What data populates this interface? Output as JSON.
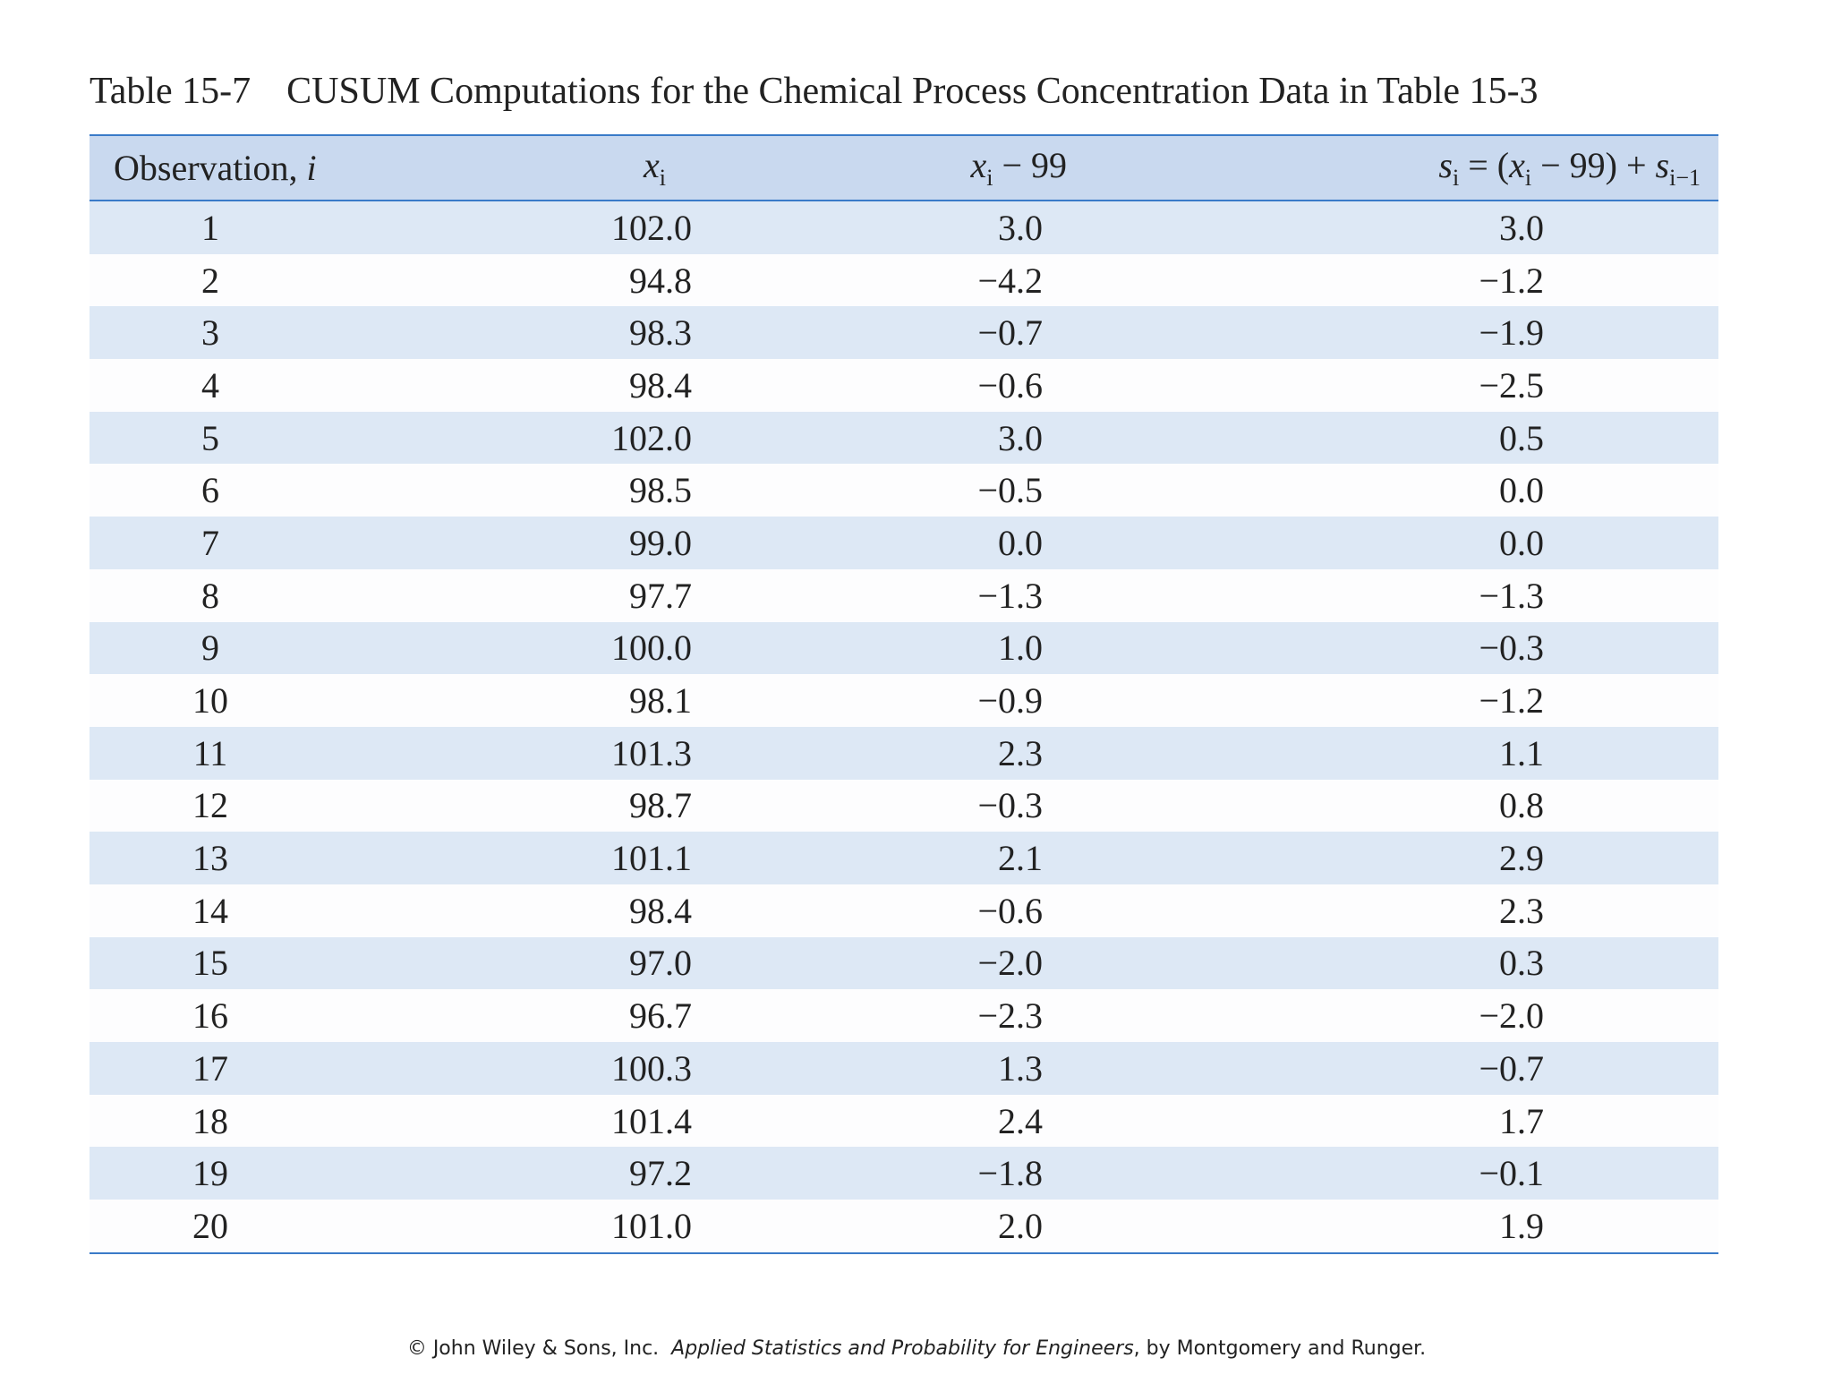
{
  "caption": {
    "label": "Table 15-7",
    "title": "CUSUM Computations for the Chemical Process Concentration Data in Table 15-3"
  },
  "table": {
    "header": [
      [
        "Observation, ",
        {
          "italic": "i"
        }
      ],
      [
        {
          "italic": "x"
        },
        {
          "sub": "i"
        }
      ],
      [
        {
          "italic": "x"
        },
        {
          "sub": "i"
        },
        " − 99"
      ],
      [
        {
          "italic": "s"
        },
        {
          "sub": "i"
        },
        " = (",
        {
          "italic": "x"
        },
        {
          "sub": "i"
        },
        " − 99) + ",
        {
          "italic": "s"
        },
        {
          "sub": "i−1"
        }
      ]
    ],
    "rows": [
      [
        "1",
        "102.0",
        "3.0",
        "3.0"
      ],
      [
        "2",
        "94.8",
        "−4.2",
        "−1.2"
      ],
      [
        "3",
        "98.3",
        "−0.7",
        "−1.9"
      ],
      [
        "4",
        "98.4",
        "−0.6",
        "−2.5"
      ],
      [
        "5",
        "102.0",
        "3.0",
        "0.5"
      ],
      [
        "6",
        "98.5",
        "−0.5",
        "0.0"
      ],
      [
        "7",
        "99.0",
        "0.0",
        "0.0"
      ],
      [
        "8",
        "97.7",
        "−1.3",
        "−1.3"
      ],
      [
        "9",
        "100.0",
        "1.0",
        "−0.3"
      ],
      [
        "10",
        "98.1",
        "−0.9",
        "−1.2"
      ],
      [
        "11",
        "101.3",
        "2.3",
        "1.1"
      ],
      [
        "12",
        "98.7",
        "−0.3",
        "0.8"
      ],
      [
        "13",
        "101.1",
        "2.1",
        "2.9"
      ],
      [
        "14",
        "98.4",
        "−0.6",
        "2.3"
      ],
      [
        "15",
        "97.0",
        "−2.0",
        "0.3"
      ],
      [
        "16",
        "96.7",
        "−2.3",
        "−2.0"
      ],
      [
        "17",
        "100.3",
        "1.3",
        "−0.7"
      ],
      [
        "18",
        "101.4",
        "2.4",
        "1.7"
      ],
      [
        "19",
        "97.2",
        "−1.8",
        "−0.1"
      ],
      [
        "20",
        "101.0",
        "2.0",
        "1.9"
      ]
    ]
  },
  "footer": [
    "© John Wiley & Sons, Inc.  ",
    "Applied Statistics and Probability for Engineers",
    ", by Montgomery and Runger."
  ]
}
